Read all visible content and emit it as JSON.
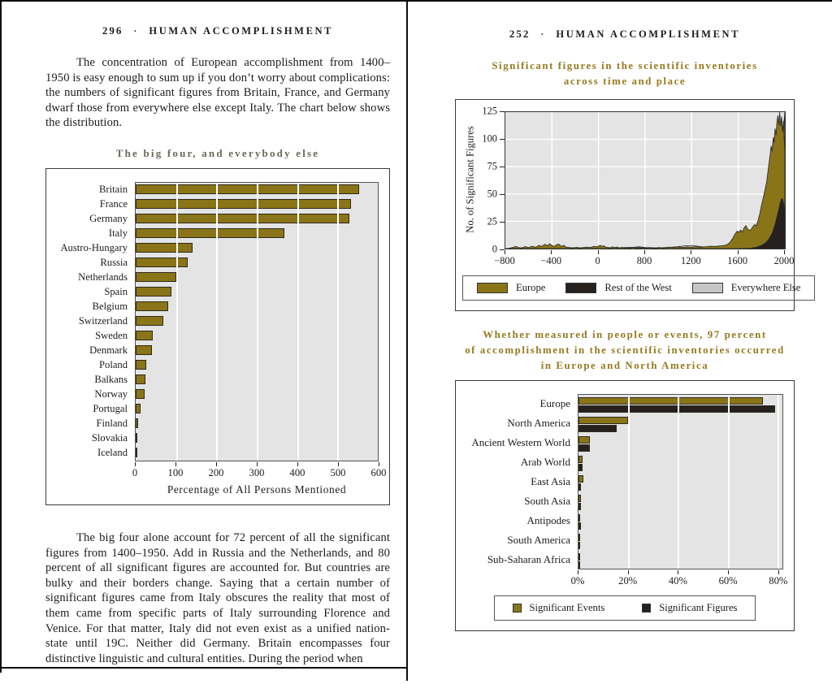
{
  "colors": {
    "gold": "#8a7418",
    "near_black": "#26211e",
    "light_gray": "#c6c6c6",
    "plot_background": "#e4e4e5",
    "caption_brown": "#97791f",
    "left_caption_gray": "#6b675c"
  },
  "left_page": {
    "header": {
      "page_number": "296",
      "separator": "·",
      "book_title": "HUMAN ACCOMPLISHMENT"
    },
    "paragraph_top": "The concentration of European accomplishment from 1400–1950 is easy enough to sum up if you don’t worry about complications: the numbers of significant figures from Britain, France, and Germany dwarf those from everywhere else except Italy. The chart below shows the distribution.",
    "chart_title": "The big four, and everybody else",
    "paragraph_bottom": "The big four alone account for 72 percent of all the significant figures from 1400–1950. Add in Russia and the Netherlands, and 80 percent of all significant figures are accounted for. But countries are bulky and their borders change. Saying that a certain number of significant figures came from Italy obscures the reality that most of them came from specific parts of Italy surrounding Florence and Venice. For that matter, Italy did not even exist as a unified nation-state until 19C. Neither did Germany. Britain encompasses four distinctive linguistic and cultural entities. During the period when"
  },
  "right_page": {
    "header": {
      "page_number": "252",
      "separator": "·",
      "book_title": "HUMAN ACCOMPLISHMENT"
    },
    "caption_top_line1": "Significant figures in the scientific inventories",
    "caption_top_line2": "across time and place",
    "caption_mid_line1": "Whether measured in people or events, 97 percent",
    "caption_mid_line2": "of accomplishment in the scientific inventories occurred",
    "caption_mid_line3": "in Europe and North America"
  },
  "chart_data": [
    {
      "id": "big-four",
      "type": "bar",
      "orientation": "horizontal",
      "title": "The big four, and everybody else",
      "xlabel": "Percentage of All Persons Mentioned",
      "xlim": [
        0,
        600
      ],
      "xticks": [
        0,
        100,
        200,
        300,
        400,
        500,
        600
      ],
      "grid": true,
      "bar_color": "#8a7418",
      "categories": [
        "Britain",
        "France",
        "Germany",
        "Italy",
        "Austro-Hungary",
        "Russia",
        "Netherlands",
        "Spain",
        "Belgium",
        "Switzerland",
        "Sweden",
        "Denmark",
        "Poland",
        "Balkans",
        "Norway",
        "Portugal",
        "Finland",
        "Slovakia",
        "Iceland"
      ],
      "values": [
        554,
        534,
        529,
        368,
        141,
        129,
        100,
        88,
        81,
        68,
        43,
        40,
        26,
        25,
        23,
        12,
        6,
        4,
        2
      ]
    },
    {
      "id": "significant-figures-over-time",
      "type": "area",
      "title": "Significant figures in the scientific inventories across time and place",
      "ylabel": "No. of Significant Figures",
      "ylim": [
        0,
        125
      ],
      "yticks": [
        0,
        25,
        50,
        75,
        100,
        125
      ],
      "xticks": [
        -800,
        -400,
        0,
        800,
        1200,
        1600,
        2000
      ],
      "xtick_labels": [
        "−800",
        "−400",
        "0",
        "800",
        "1200",
        "1600",
        "2000"
      ],
      "grid": true,
      "legend_position": "bottom",
      "draw_order": [
        "Everywhere Else",
        "Europe",
        "Rest of the West"
      ],
      "series": [
        {
          "name": "Europe",
          "color": "#8a7418",
          "points": [
            [
              -800,
              0
            ],
            [
              -770,
              0.3
            ],
            [
              -740,
              1
            ],
            [
              -710,
              2
            ],
            [
              -690,
              1
            ],
            [
              -660,
              0.6
            ],
            [
              -630,
              1.8
            ],
            [
              -600,
              1
            ],
            [
              -570,
              2.2
            ],
            [
              -540,
              1.2
            ],
            [
              -510,
              3
            ],
            [
              -490,
              2
            ],
            [
              -460,
              4
            ],
            [
              -440,
              2.5
            ],
            [
              -420,
              4.5
            ],
            [
              -400,
              2.8
            ],
            [
              -380,
              2
            ],
            [
              -360,
              3.6
            ],
            [
              -340,
              4.2
            ],
            [
              -320,
              2
            ],
            [
              -300,
              3
            ],
            [
              -280,
              1.4
            ],
            [
              -250,
              1
            ],
            [
              -220,
              0.6
            ],
            [
              -190,
              1.2
            ],
            [
              -160,
              0.6
            ],
            [
              -130,
              1
            ],
            [
              -100,
              1.4
            ],
            [
              -70,
              1
            ],
            [
              -40,
              2
            ],
            [
              -10,
              1.6
            ],
            [
              0,
              2.4
            ],
            [
              30,
              3
            ],
            [
              60,
              2
            ],
            [
              90,
              2.6
            ],
            [
              120,
              1.4
            ],
            [
              160,
              1
            ],
            [
              200,
              0.6
            ],
            [
              240,
              1.6
            ],
            [
              280,
              1
            ],
            [
              320,
              1.4
            ],
            [
              360,
              0.6
            ],
            [
              400,
              1.2
            ],
            [
              440,
              0.6
            ],
            [
              480,
              1
            ],
            [
              520,
              0.5
            ],
            [
              560,
              1
            ],
            [
              600,
              1.2
            ],
            [
              640,
              0.5
            ],
            [
              680,
              1
            ],
            [
              720,
              0.6
            ],
            [
              760,
              1
            ],
            [
              800,
              0.6
            ],
            [
              840,
              1
            ],
            [
              880,
              0.5
            ],
            [
              920,
              1
            ],
            [
              960,
              0.6
            ],
            [
              1000,
              1.4
            ],
            [
              1040,
              1
            ],
            [
              1080,
              1.6
            ],
            [
              1120,
              1
            ],
            [
              1160,
              1.5
            ],
            [
              1200,
              1.2
            ],
            [
              1240,
              1.8
            ],
            [
              1280,
              1.2
            ],
            [
              1320,
              1.8
            ],
            [
              1360,
              2.2
            ],
            [
              1400,
              2
            ],
            [
              1440,
              2.4
            ],
            [
              1480,
              2.8
            ],
            [
              1510,
              4
            ],
            [
              1530,
              6
            ],
            [
              1550,
              9
            ],
            [
              1570,
              13
            ],
            [
              1590,
              16
            ],
            [
              1605,
              15
            ],
            [
              1620,
              17
            ],
            [
              1635,
              15
            ],
            [
              1650,
              19
            ],
            [
              1665,
              21
            ],
            [
              1680,
              18
            ],
            [
              1695,
              16.5
            ],
            [
              1710,
              17.5
            ],
            [
              1725,
              20
            ],
            [
              1740,
              22
            ],
            [
              1755,
              21
            ],
            [
              1770,
              26
            ],
            [
              1785,
              32
            ],
            [
              1800,
              40
            ],
            [
              1815,
              47
            ],
            [
              1830,
              54
            ],
            [
              1845,
              62
            ],
            [
              1855,
              71
            ],
            [
              1865,
              79
            ],
            [
              1875,
              87
            ],
            [
              1882,
              94
            ],
            [
              1890,
              89
            ],
            [
              1900,
              102
            ],
            [
              1908,
              97
            ],
            [
              1916,
              110
            ],
            [
              1924,
              104
            ],
            [
              1932,
              116
            ],
            [
              1940,
              122
            ],
            [
              1948,
              113
            ],
            [
              1956,
              125
            ],
            [
              1964,
              112
            ],
            [
              1972,
              121
            ],
            [
              1980,
              107
            ],
            [
              1988,
              117
            ],
            [
              1994,
              100
            ],
            [
              2000,
              90
            ]
          ]
        },
        {
          "name": "Rest of the West",
          "color": "#26211e",
          "points": [
            [
              1600,
              0
            ],
            [
              1700,
              0.3
            ],
            [
              1720,
              0.6
            ],
            [
              1740,
              1
            ],
            [
              1760,
              1.5
            ],
            [
              1780,
              2.2
            ],
            [
              1800,
              3
            ],
            [
              1815,
              4
            ],
            [
              1830,
              5
            ],
            [
              1845,
              6.5
            ],
            [
              1860,
              8.5
            ],
            [
              1875,
              11
            ],
            [
              1890,
              14
            ],
            [
              1900,
              17
            ],
            [
              1912,
              21
            ],
            [
              1924,
              26
            ],
            [
              1936,
              31
            ],
            [
              1948,
              36
            ],
            [
              1958,
              41
            ],
            [
              1968,
              45
            ],
            [
              1978,
              46
            ],
            [
              1988,
              42
            ],
            [
              2000,
              34
            ]
          ]
        },
        {
          "name": "Everywhere Else",
          "color": "#c6c6c6",
          "points": [
            [
              -800,
              0
            ],
            [
              -700,
              0.4
            ],
            [
              -600,
              0.8
            ],
            [
              -500,
              0.5
            ],
            [
              -400,
              1
            ],
            [
              -300,
              0.5
            ],
            [
              -200,
              0.8
            ],
            [
              -100,
              0.5
            ],
            [
              0,
              1
            ],
            [
              80,
              1.5
            ],
            [
              160,
              1
            ],
            [
              300,
              0.6
            ],
            [
              450,
              1
            ],
            [
              600,
              1.2
            ],
            [
              700,
              1.6
            ],
            [
              800,
              1
            ],
            [
              900,
              0.6
            ],
            [
              1000,
              1
            ],
            [
              1080,
              1.8
            ],
            [
              1150,
              2.6
            ],
            [
              1220,
              2.6
            ],
            [
              1280,
              1.8
            ],
            [
              1350,
              1
            ],
            [
              1420,
              1.4
            ],
            [
              1500,
              1
            ],
            [
              1600,
              0.6
            ],
            [
              1700,
              0.5
            ],
            [
              1800,
              0.8
            ],
            [
              1850,
              1.6
            ],
            [
              1900,
              3.5
            ],
            [
              1930,
              6
            ],
            [
              1950,
              10
            ],
            [
              1962,
              18
            ],
            [
              1972,
              35
            ],
            [
              1980,
              60
            ],
            [
              1988,
              90
            ],
            [
              1994,
              118
            ],
            [
              2000,
              125
            ]
          ]
        }
      ]
    },
    {
      "id": "people-vs-events-by-region",
      "type": "bar",
      "orientation": "horizontal",
      "title": "Whether measured in people or events, 97 percent of accomplishment in the scientific inventories occurred in Europe and North America",
      "xlim": [
        0,
        82
      ],
      "xticks": [
        0,
        20,
        40,
        60,
        80
      ],
      "xtick_labels": [
        "0%",
        "20%",
        "40%",
        "60%",
        "80%"
      ],
      "grid": true,
      "legend_position": "bottom",
      "categories": [
        "Europe",
        "North America",
        "Ancient Western World",
        "Arab World",
        "East Asia",
        "South Asia",
        "Antipodes",
        "South America",
        "Sub-Saharan Africa"
      ],
      "series": [
        {
          "name": "Significant Events",
          "color": "#8a7418",
          "values": [
            74,
            20,
            4.5,
            1.5,
            2.1,
            1.0,
            0.3,
            0.6,
            0.1
          ]
        },
        {
          "name": "Significant Figures",
          "color": "#26211e",
          "values": [
            79,
            15.5,
            4.5,
            1.7,
            0.9,
            0.9,
            0.9,
            0.2,
            0.3
          ]
        }
      ]
    }
  ]
}
